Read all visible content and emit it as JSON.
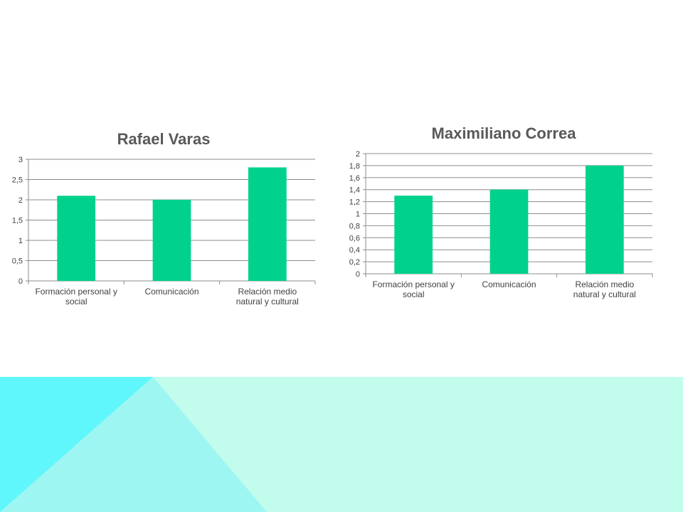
{
  "slide": {
    "colors": {
      "background": "#ffffff",
      "band": "#c2fcec",
      "left_triangle": "#5ff7fc",
      "mid_triangle": "#9ef6f2"
    }
  },
  "chart_data": [
    {
      "type": "bar",
      "title": "Rafael Varas",
      "categories": [
        "Formación personal y social",
        "Comunicación",
        "Relación medio natural y cultural"
      ],
      "category_lines": [
        [
          "Formación personal y",
          "social"
        ],
        [
          "Comunicación"
        ],
        [
          "Relación medio",
          "natural y cultural"
        ]
      ],
      "values": [
        2.1,
        2.0,
        2.8
      ],
      "ylim": [
        0,
        3
      ],
      "ticks": [
        0,
        0.5,
        1,
        1.5,
        2,
        2.5,
        3
      ],
      "tick_labels": [
        "0",
        "0,5",
        "1",
        "1,5",
        "2",
        "2,5",
        "3"
      ],
      "grid": true,
      "legend": "none",
      "bar_color": "#00d18c"
    },
    {
      "type": "bar",
      "title": "Maximiliano Correa",
      "categories": [
        "Formación personal y social",
        "Comunicación",
        "Relación medio natural y cultural"
      ],
      "category_lines": [
        [
          "Formación personal y",
          "social"
        ],
        [
          "Comunicación"
        ],
        [
          "Relación medio",
          "natural y cultural"
        ]
      ],
      "values": [
        1.3,
        1.4,
        1.8
      ],
      "ylim": [
        0,
        2
      ],
      "ticks": [
        0,
        0.2,
        0.4,
        0.6,
        0.8,
        1,
        1.2,
        1.4,
        1.6,
        1.8,
        2
      ],
      "tick_labels": [
        "0",
        "0,2",
        "0,4",
        "0,6",
        "0,8",
        "1",
        "1,2",
        "1,4",
        "1,6",
        "1,8",
        "2"
      ],
      "grid": true,
      "legend": "none",
      "bar_color": "#00d18c"
    }
  ]
}
